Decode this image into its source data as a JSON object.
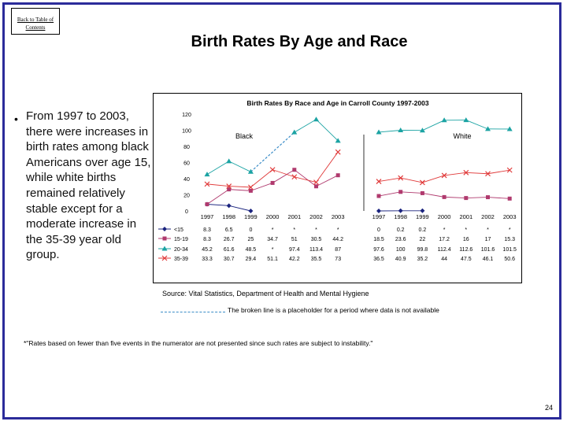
{
  "back_link": "Back to Table of Contents",
  "page_title": "Birth Rates By Age and Race",
  "bullet": "From 1997 to 2003, there were increases in birth rates among black Americans over age 15, while white births remained relatively stable except for a moderate increase in the 35-39 year old group.",
  "source": "Source: Vital Statistics, Department of Health and Mental Hygiene",
  "legend_note": "The broken line is a placeholder for a period where data is not available",
  "footnote": "*\"Rates based on fewer than five events in the numerator are not presented since such rates are subject to instability.\"",
  "page_number": "24",
  "colors": {
    "frame": "#2b2b9a",
    "lt15": "#1a237e",
    "a15_19": "#b03a6e",
    "a20_34": "#1ba3a3",
    "a35_39": "#e03a3a",
    "dashed": "#3b8dc8"
  },
  "chart_data": {
    "type": "line",
    "title": "Birth Rates By Race and Age in Carroll County 1997-2003",
    "ylim": [
      0,
      120
    ],
    "yticks": [
      0,
      20,
      40,
      60,
      80,
      100,
      120
    ],
    "panels": [
      {
        "name": "Black",
        "categories": [
          "1997",
          "1998",
          "1999",
          "2000",
          "2001",
          "2002",
          "2003"
        ]
      },
      {
        "name": "White",
        "categories": [
          "1997",
          "1998",
          "1999",
          "2000",
          "2001",
          "2002",
          "2003"
        ]
      }
    ],
    "series": [
      {
        "name": "<15",
        "key": "lt15",
        "marker": "diamond",
        "black": [
          8.3,
          6.5,
          0,
          null,
          null,
          null,
          null
        ],
        "black_labels": [
          "8.3",
          "6.5",
          "0",
          "*",
          "*",
          "*",
          "*"
        ],
        "white": [
          0,
          0.2,
          0.2,
          null,
          null,
          null,
          null
        ],
        "white_labels": [
          "0",
          "0.2",
          "0.2",
          "*",
          "*",
          "*",
          "*"
        ]
      },
      {
        "name": "15-19",
        "key": "a15_19",
        "marker": "square",
        "black": [
          8.3,
          26.7,
          25,
          34.7,
          51,
          30.5,
          44.2
        ],
        "black_labels": [
          "8.3",
          "26.7",
          "25",
          "34.7",
          "51",
          "30.5",
          "44.2"
        ],
        "white": [
          18.5,
          23.6,
          22,
          17.2,
          16,
          17,
          15.3
        ],
        "white_labels": [
          "18.5",
          "23.6",
          "22",
          "17.2",
          "16",
          "17",
          "15.3"
        ]
      },
      {
        "name": "20-34",
        "key": "a20_34",
        "marker": "triangle",
        "black": [
          45.2,
          61.6,
          48.5,
          null,
          97.4,
          113.4,
          87
        ],
        "black_labels": [
          "45.2",
          "61.6",
          "48.5",
          "*",
          "97.4",
          "113.4",
          "87"
        ],
        "white": [
          97.6,
          100,
          99.8,
          112.4,
          112.6,
          101.6,
          101.5
        ],
        "white_labels": [
          "97.6",
          "100",
          "99.8",
          "112.4",
          "112.6",
          "101.6",
          "101.5"
        ]
      },
      {
        "name": "35-39",
        "key": "a35_39",
        "marker": "x",
        "black": [
          33.3,
          30.7,
          29.4,
          51.1,
          42.2,
          35.5,
          73
        ],
        "black_labels": [
          "33.3",
          "30.7",
          "29.4",
          "51.1",
          "42.2",
          "35.5",
          "73"
        ],
        "white": [
          36.5,
          40.9,
          35.2,
          44,
          47.5,
          46.1,
          50.6
        ],
        "white_labels": [
          "36.5",
          "40.9",
          "35.2",
          "44",
          "47.5",
          "46.1",
          "50.6"
        ]
      }
    ]
  }
}
